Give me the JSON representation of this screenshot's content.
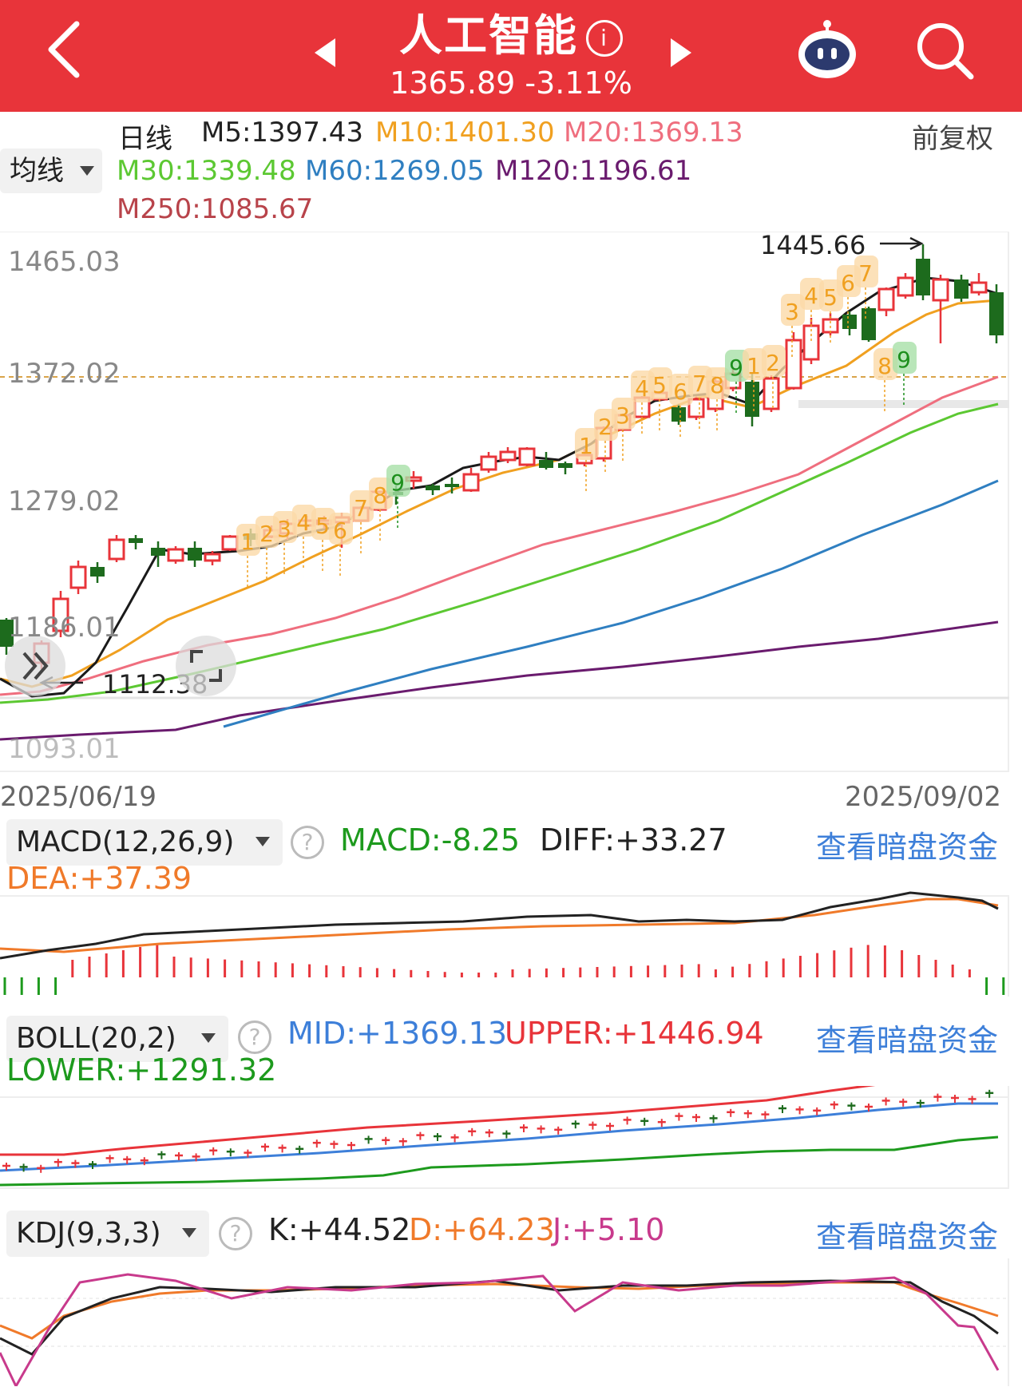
{
  "header": {
    "title": "人工智能",
    "info_glyph": "i",
    "price": "1365.89",
    "change": "-3.11%",
    "icons": [
      "back-icon",
      "prev-arrow-icon",
      "next-arrow-icon",
      "robot-icon",
      "search-icon"
    ]
  },
  "ma_panel": {
    "period": "日线",
    "selector": "均线",
    "adjust": "前复权",
    "items": [
      {
        "label": "M5:1397.43",
        "color": "#222222"
      },
      {
        "label": "M10:1401.30",
        "color": "#f0a020"
      },
      {
        "label": "M20:1369.13",
        "color": "#ef6e7e"
      },
      {
        "label": "M30:1339.48",
        "color": "#5cc832"
      },
      {
        "label": "M60:1269.05",
        "color": "#2f7fc1"
      },
      {
        "label": "M120:1196.61",
        "color": "#6a1b6e"
      },
      {
        "label": "M250:1085.67",
        "color": "#b8434a"
      }
    ]
  },
  "kline": {
    "y_labels": [
      "1465.03",
      "1372.02",
      "1279.02",
      "1186.01",
      "1093.01"
    ],
    "high_marker": "1445.66",
    "low_marker": "1112.38",
    "date_start": "2025/06/19",
    "date_end": "2025/09/02",
    "seq_group1": [
      "1",
      "2",
      "3",
      "4",
      "5",
      "6",
      "7",
      "8",
      "9"
    ],
    "seq_group2": [
      "1",
      "2",
      "3",
      "4",
      "5",
      "6",
      "7",
      "8",
      "9"
    ],
    "seq_group3": [
      "1",
      "2"
    ],
    "seq_group4": [
      "3",
      "4",
      "5",
      "6",
      "7"
    ],
    "seq_group5": [
      "8",
      "9"
    ],
    "colors": {
      "up": "#e8343a",
      "down": "#1d6b1d",
      "seq_bg": "#fbd9a8",
      "seq_text": "#f0a020",
      "nine_bg": "#a8e0a8",
      "nine_text": "#1d8f1d"
    }
  },
  "macd": {
    "selector": "MACD(12,26,9)",
    "macd": "MACD:-8.25",
    "diff": "DIFF:+33.27",
    "dea": "DEA:+37.39",
    "link": "查看暗盘资金"
  },
  "boll": {
    "selector": "BOLL(20,2)",
    "mid": "MID:+1369.13",
    "upper": "UPPER:+1446.94",
    "lower": "LOWER:+1291.32",
    "link": "查看暗盘资金"
  },
  "kdj": {
    "selector": "KDJ(9,3,3)",
    "k": "K:+44.52",
    "d": "D:+64.23",
    "j": "J:+5.10",
    "link": "查看暗盘资金"
  }
}
